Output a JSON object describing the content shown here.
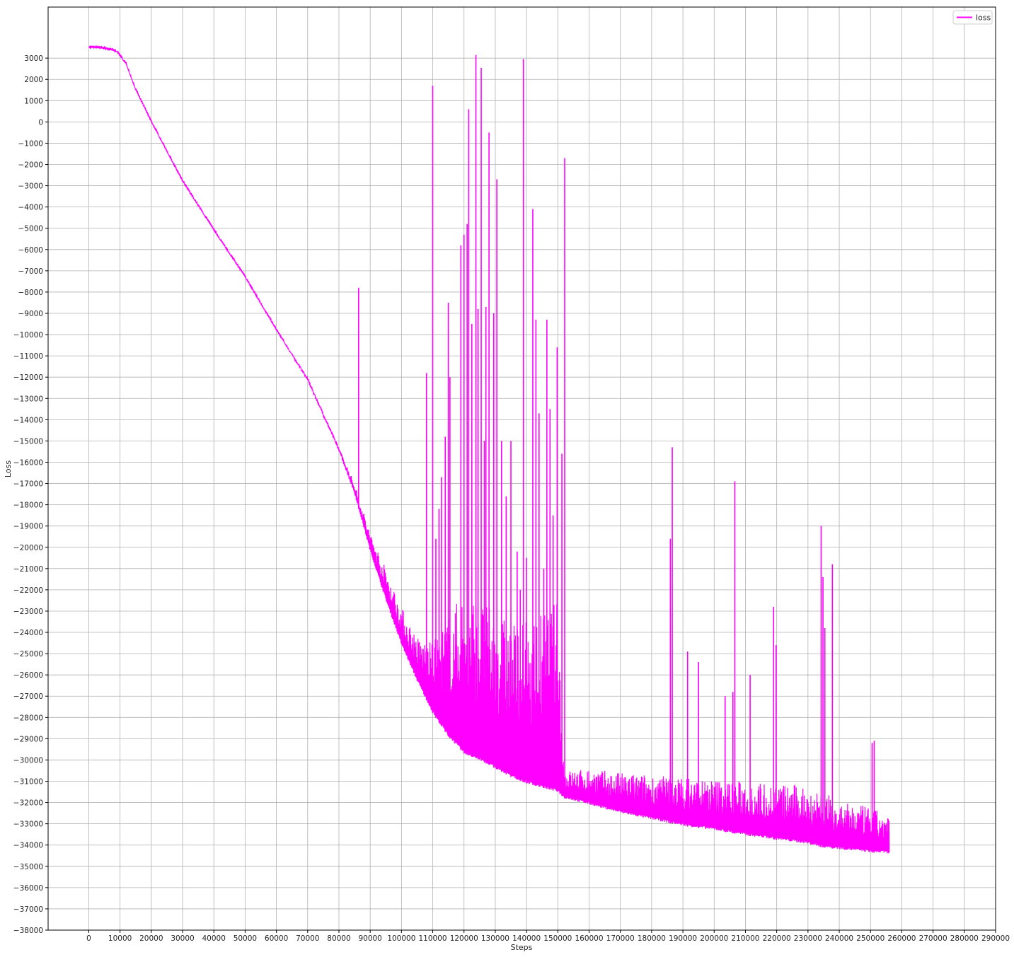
{
  "chart_data": {
    "type": "line",
    "title": "",
    "xlabel": "Steps",
    "ylabel": "Loss",
    "xlim": [
      -13000,
      290000
    ],
    "ylim": [
      -38000,
      5400
    ],
    "x_ticks": [
      0,
      10000,
      20000,
      30000,
      40000,
      50000,
      60000,
      70000,
      80000,
      90000,
      100000,
      110000,
      120000,
      130000,
      140000,
      150000,
      160000,
      170000,
      180000,
      190000,
      200000,
      210000,
      220000,
      230000,
      240000,
      250000,
      260000,
      270000,
      280000,
      290000
    ],
    "y_ticks": [
      3000,
      2000,
      1000,
      0,
      -1000,
      -2000,
      -3000,
      -4000,
      -5000,
      -6000,
      -7000,
      -8000,
      -9000,
      -10000,
      -11000,
      -12000,
      -13000,
      -14000,
      -15000,
      -16000,
      -17000,
      -18000,
      -19000,
      -20000,
      -21000,
      -22000,
      -23000,
      -24000,
      -25000,
      -26000,
      -27000,
      -28000,
      -29000,
      -30000,
      -31000,
      -32000,
      -33000,
      -34000,
      -35000,
      -36000,
      -37000,
      -38000
    ],
    "grid": true,
    "legend_position": "top-right",
    "series": [
      {
        "name": "loss",
        "color": "#ff00ff",
        "description": "noisy training curve",
        "lower_envelope": [
          [
            0,
            3500
          ],
          [
            5000,
            3450
          ],
          [
            9000,
            3300
          ],
          [
            12000,
            2700
          ],
          [
            15000,
            1500
          ],
          [
            20000,
            0
          ],
          [
            30000,
            -2800
          ],
          [
            40000,
            -5100
          ],
          [
            50000,
            -7300
          ],
          [
            60000,
            -9800
          ],
          [
            70000,
            -12200
          ],
          [
            80000,
            -15500
          ],
          [
            85000,
            -17500
          ],
          [
            90000,
            -20200
          ],
          [
            95000,
            -22500
          ],
          [
            100000,
            -24600
          ],
          [
            105000,
            -26300
          ],
          [
            110000,
            -27800
          ],
          [
            115000,
            -28900
          ],
          [
            120000,
            -29700
          ],
          [
            125000,
            -30000
          ],
          [
            130000,
            -30400
          ],
          [
            135000,
            -30800
          ],
          [
            140000,
            -31100
          ],
          [
            145000,
            -31300
          ],
          [
            150000,
            -31500
          ],
          [
            152000,
            -31800
          ],
          [
            160000,
            -32100
          ],
          [
            170000,
            -32500
          ],
          [
            180000,
            -32800
          ],
          [
            190000,
            -33100
          ],
          [
            200000,
            -33300
          ],
          [
            210000,
            -33550
          ],
          [
            220000,
            -33750
          ],
          [
            230000,
            -33950
          ],
          [
            234000,
            -34100
          ],
          [
            240000,
            -34200
          ],
          [
            250000,
            -34350
          ],
          [
            256000,
            -34400
          ]
        ],
        "upper_envelope": [
          [
            0,
            3500
          ],
          [
            5000,
            3450
          ],
          [
            9000,
            3300
          ],
          [
            12000,
            2700
          ],
          [
            15000,
            1500
          ],
          [
            20000,
            0
          ],
          [
            30000,
            -2800
          ],
          [
            40000,
            -5100
          ],
          [
            50000,
            -7300
          ],
          [
            60000,
            -9800
          ],
          [
            70000,
            -12000
          ],
          [
            80000,
            -15300
          ],
          [
            85000,
            -17000
          ],
          [
            90000,
            -19300
          ],
          [
            95000,
            -21000
          ],
          [
            100000,
            -22800
          ],
          [
            105000,
            -24200
          ],
          [
            110000,
            -24500
          ],
          [
            115000,
            -23200
          ],
          [
            120000,
            -22000
          ],
          [
            125000,
            -22500
          ],
          [
            130000,
            -23000
          ],
          [
            135000,
            -23500
          ],
          [
            140000,
            -23500
          ],
          [
            145000,
            -23000
          ],
          [
            150000,
            -22500
          ],
          [
            152000,
            -30500
          ],
          [
            160000,
            -30400
          ],
          [
            170000,
            -30600
          ],
          [
            180000,
            -30700
          ],
          [
            190000,
            -30800
          ],
          [
            200000,
            -30900
          ],
          [
            210000,
            -31000
          ],
          [
            220000,
            -31100
          ],
          [
            230000,
            -31200
          ],
          [
            236000,
            -31500
          ],
          [
            240000,
            -32000
          ],
          [
            250000,
            -32200
          ],
          [
            256000,
            -32700
          ]
        ],
        "spikes": [
          [
            86300,
            -7800
          ],
          [
            108000,
            -11800
          ],
          [
            110000,
            1700
          ],
          [
            111000,
            -19600
          ],
          [
            112000,
            -18200
          ],
          [
            112800,
            -16700
          ],
          [
            114000,
            -14800
          ],
          [
            115000,
            -8500
          ],
          [
            115500,
            -12000
          ],
          [
            119000,
            -5800
          ],
          [
            120000,
            -5300
          ],
          [
            121000,
            -4800
          ],
          [
            121500,
            600
          ],
          [
            122500,
            -9500
          ],
          [
            123800,
            3150
          ],
          [
            124500,
            -8800
          ],
          [
            125500,
            2550
          ],
          [
            126500,
            -15000
          ],
          [
            127000,
            -8700
          ],
          [
            128000,
            -500
          ],
          [
            129500,
            -9000
          ],
          [
            130500,
            -2700
          ],
          [
            132000,
            -15000
          ],
          [
            133500,
            -17600
          ],
          [
            135000,
            -15000
          ],
          [
            137000,
            -20200
          ],
          [
            138000,
            -22000
          ],
          [
            139000,
            2950
          ],
          [
            140000,
            -20500
          ],
          [
            142000,
            -4100
          ],
          [
            143000,
            -9300
          ],
          [
            144000,
            -13700
          ],
          [
            145500,
            -21000
          ],
          [
            146500,
            -9300
          ],
          [
            147500,
            -13500
          ],
          [
            148500,
            -18500
          ],
          [
            149800,
            -10600
          ],
          [
            151300,
            -15600
          ],
          [
            152200,
            -1700
          ],
          [
            186000,
            -19600
          ],
          [
            186600,
            -15300
          ],
          [
            191500,
            -24900
          ],
          [
            195000,
            -25400
          ],
          [
            203500,
            -27000
          ],
          [
            206000,
            -26800
          ],
          [
            206600,
            -16900
          ],
          [
            211500,
            -26000
          ],
          [
            219000,
            -22800
          ],
          [
            219800,
            -24600
          ],
          [
            234200,
            -19000
          ],
          [
            234800,
            -21400
          ],
          [
            235400,
            -23800
          ],
          [
            237800,
            -20800
          ],
          [
            250500,
            -29200
          ],
          [
            251200,
            -29100
          ]
        ]
      }
    ]
  }
}
